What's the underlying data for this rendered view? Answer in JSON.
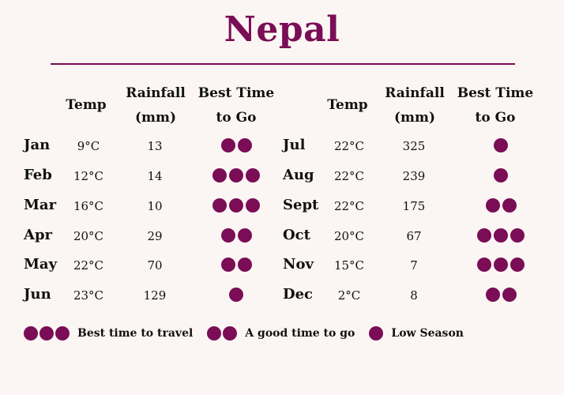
{
  "title": "Nepal",
  "headers": {
    "temp": "Temp",
    "rainfall": "Rainfall\n(mm)",
    "rainfall_l1": "Rainfall",
    "rainfall_l2": "(mm)",
    "best_l1": "Best Time",
    "best_l2": "to Go"
  },
  "colors": {
    "accent": "#7a0d55",
    "background": "#fbf6f3"
  },
  "left_months": [
    {
      "month": "Jan",
      "temp": "9°C",
      "rain": "13",
      "rating": 2
    },
    {
      "month": "Feb",
      "temp": "12°C",
      "rain": "14",
      "rating": 3
    },
    {
      "month": "Mar",
      "temp": "16°C",
      "rain": "10",
      "rating": 3
    },
    {
      "month": "Apr",
      "temp": "20°C",
      "rain": "29",
      "rating": 2
    },
    {
      "month": "May",
      "temp": "22°C",
      "rain": "70",
      "rating": 2
    },
    {
      "month": "Jun",
      "temp": "23°C",
      "rain": "129",
      "rating": 1
    }
  ],
  "right_months": [
    {
      "month": "Jul",
      "temp": "22°C",
      "rain": "325",
      "rating": 1
    },
    {
      "month": "Aug",
      "temp": "22°C",
      "rain": "239",
      "rating": 1
    },
    {
      "month": "Sept",
      "temp": "22°C",
      "rain": "175",
      "rating": 2
    },
    {
      "month": "Oct",
      "temp": "20°C",
      "rain": "67",
      "rating": 3
    },
    {
      "month": "Nov",
      "temp": "15°C",
      "rain": "7",
      "rating": 3
    },
    {
      "month": "Dec",
      "temp": "2°C",
      "rain": "8",
      "rating": 2
    }
  ],
  "legend": {
    "best": "Best time to travel",
    "good": "A good time to go",
    "low": "Low Season"
  }
}
